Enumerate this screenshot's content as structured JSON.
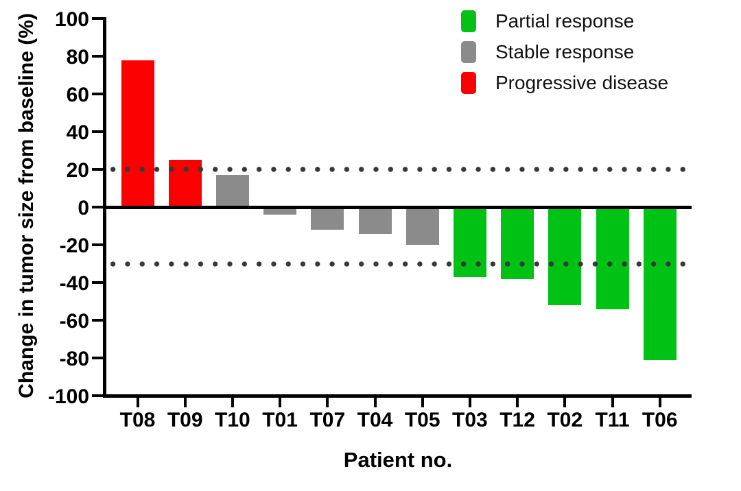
{
  "chart_data": {
    "type": "bar",
    "subtype": "waterfall",
    "title": "",
    "xlabel": "Patient no.",
    "ylabel": "Change in tumor size from baseline (%)",
    "categories": [
      "T08",
      "T09",
      "T10",
      "T01",
      "T07",
      "T04",
      "T05",
      "T03",
      "T12",
      "T02",
      "T11",
      "T06"
    ],
    "values": [
      78,
      25,
      17,
      -4,
      -12,
      -14,
      -20,
      -37,
      -38,
      -52,
      -54,
      -81
    ],
    "groups": [
      "progressive",
      "progressive",
      "stable",
      "stable",
      "stable",
      "stable",
      "stable",
      "partial",
      "partial",
      "partial",
      "partial",
      "partial"
    ],
    "ylim": [
      -100,
      100
    ],
    "yticks": [
      100,
      80,
      60,
      40,
      20,
      0,
      -20,
      -40,
      -60,
      -80,
      -100
    ],
    "reference_lines": [
      20,
      -30
    ],
    "grid": false,
    "legend_position": "top-right",
    "legend": [
      {
        "key": "partial",
        "label": "Partial response",
        "color": "#00C214"
      },
      {
        "key": "stable",
        "label": "Stable response",
        "color": "#8B8B8B"
      },
      {
        "key": "progressive",
        "label": "Progressive disease",
        "color": "#FA0000"
      }
    ],
    "colors": {
      "axis": "#000000",
      "reference_dots": "#383838",
      "background": "#FFFFFF"
    }
  }
}
